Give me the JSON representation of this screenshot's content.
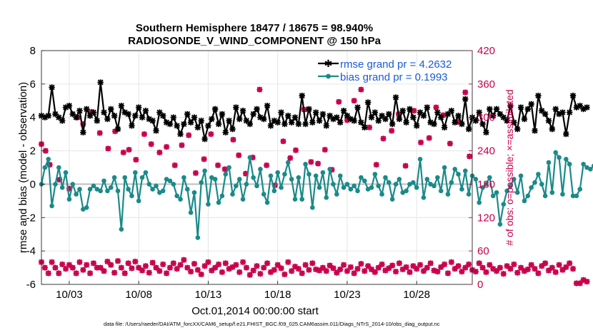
{
  "chart_data": {
    "type": "line",
    "title": "Southern Hemisphere 18477 / 18675 = 98.940%",
    "subtitle": "RADIOSONDE_V_WIND_COMPONENT @ 150 hPa",
    "ylabel": "rmse and bias (model - observation)",
    "y2label": "# of obs: o=possible; ×=assimilated",
    "xlabel": "Oct.01,2014 00:00:00 start",
    "footnote": "data file: /Users/raeder/DAI/ATM_forcXX/CAM6_setup/f.e21.FHIST_BGC.f09_025.CAM6assim.011/Diags_NTrS_2014-10/obs_diag_output.nc",
    "x_range": [
      1.0,
      32.0
    ],
    "ylim": [
      -6,
      8
    ],
    "y_ticks": [
      -6,
      -4,
      -2,
      0,
      2,
      4,
      6,
      8
    ],
    "y2lim": [
      0,
      420
    ],
    "y2_ticks": [
      0,
      60,
      120,
      180,
      240,
      300,
      360,
      420
    ],
    "x_ticks": [
      {
        "pos": 3.0,
        "label": "10/03"
      },
      {
        "pos": 8.0,
        "label": "10/08"
      },
      {
        "pos": 13.0,
        "label": "10/13"
      },
      {
        "pos": 18.0,
        "label": "10/18"
      },
      {
        "pos": 23.0,
        "label": "10/23"
      },
      {
        "pos": 28.0,
        "label": "10/28"
      }
    ],
    "grid": true,
    "zero_line": 0,
    "x_step": 0.25,
    "series": [
      {
        "name": "rmse",
        "legend": "rmse grand pr = 4.2632",
        "color": "#000000",
        "marker": "asterisk",
        "values": [
          4.1,
          4.0,
          4.1,
          5.8,
          4.2,
          4.0,
          3.8,
          4.6,
          4.7,
          4.2,
          4.0,
          4.4,
          3.1,
          4.5,
          4.1,
          4.3,
          3.8,
          6.1,
          4.3,
          3.9,
          4.5,
          4.1,
          3.3,
          4.7,
          4.3,
          4.2,
          3.5,
          4.1,
          4.6,
          4.0,
          4.4,
          3.9,
          3.8,
          3.2,
          4.3,
          4.1,
          3.7,
          3.6,
          4.0,
          3.5,
          3.0,
          3.6,
          4.2,
          3.7,
          4.0,
          3.4,
          3.8,
          2.7,
          3.5,
          3.9,
          4.5,
          3.6,
          4.2,
          3.1,
          3.8,
          3.3,
          4.6,
          3.9,
          4.4,
          3.8,
          3.6,
          4.2,
          4.5,
          4.0,
          3.9,
          4.7,
          3.5,
          3.8,
          3.7,
          4.3,
          3.6,
          4.1,
          3.7,
          4.0,
          3.6,
          5.3,
          3.6,
          4.5,
          3.7,
          4.3,
          3.8,
          4.2,
          3.5,
          4.1,
          3.9,
          4.0,
          3.7,
          4.4,
          4.1,
          3.9,
          3.8,
          4.6,
          3.7,
          3.4,
          4.9,
          4.0,
          4.3,
          3.8,
          4.1,
          3.9,
          4.2,
          3.6,
          5.2,
          3.9,
          4.4,
          3.7,
          4.5,
          4.0,
          3.5,
          4.3,
          4.1,
          4.6,
          3.7,
          3.6,
          4.3,
          4.0,
          3.4,
          4.2,
          4.4,
          3.7,
          4.1,
          3.6,
          5.1,
          3.3,
          4.0,
          3.8,
          4.3,
          3.6,
          3.1,
          4.5,
          4.1,
          4.5,
          4.2,
          4.0,
          3.8,
          4.7,
          3.7,
          3.3,
          4.6,
          3.9,
          4.5,
          4.8,
          3.2,
          5.3,
          4.4,
          4.2,
          3.8,
          3.3,
          4.5,
          4.2,
          4.3,
          3.0,
          4.3,
          5.3,
          4.6,
          4.7,
          4.5,
          4.6
        ]
      },
      {
        "name": "bias",
        "legend": "bias grand pr = 0.1993",
        "color": "#1a8a8a",
        "marker": "dot",
        "values": [
          0.0,
          1.0,
          1.5,
          -1.3,
          0.0,
          1.0,
          -0.2,
          0.7,
          -0.9,
          0.0,
          -0.6,
          -0.3,
          -1.5,
          -1.4,
          -0.3,
          -0.1,
          -0.3,
          -0.4,
          0.2,
          -0.4,
          -0.2,
          0.4,
          -0.4,
          -2.7,
          0.4,
          -0.3,
          -0.7,
          0.7,
          -1.0,
          0.4,
          0.7,
          0.0,
          -0.3,
          -0.1,
          -0.5,
          -0.4,
          0.3,
          0.2,
          0.0,
          -0.7,
          -0.9,
          0.4,
          -0.3,
          -1.7,
          -0.5,
          -3.2,
          0.1,
          0.8,
          -1.2,
          0.4,
          0.3,
          -1.1,
          -0.7,
          0.6,
          1.0,
          -0.6,
          -0.1,
          0.3,
          -0.9,
          0.0,
          1.6,
          0.4,
          -0.1,
          0.9,
          -0.6,
          -1.1,
          0.5,
          -0.4,
          0.7,
          -0.2,
          0.6,
          1.3,
          0.3,
          -0.9,
          0.4,
          -0.9,
          1.2,
          0.6,
          -1.4,
          0.5,
          -0.2,
          0.7,
          -0.8,
          0.9,
          0.0,
          -0.6,
          0.5,
          -0.2,
          0.0,
          -0.3,
          -0.1,
          -0.4,
          0.4,
          0.2,
          -0.3,
          -0.2,
          0.6,
          -0.1,
          -0.6,
          0.4,
          0.1,
          -0.9,
          0.0,
          0.3,
          -0.5,
          -0.4,
          0.0,
          0.1,
          -0.2,
          1.5,
          -0.8,
          0.3,
          0.0,
          -0.1,
          0.4,
          -0.4,
          1.0,
          -0.6,
          0.1,
          0.9,
          0.6,
          -0.3,
          0.8,
          -0.6,
          0.5,
          0.3,
          -1.1,
          -0.2,
          0.0,
          0.4,
          -0.7,
          -0.5,
          -2.4,
          -1.2,
          -0.4,
          -0.1,
          0.3,
          -0.5,
          0.5,
          -1.0,
          -0.7,
          -0.2,
          0.1,
          0.6,
          0.0,
          -0.7,
          1.3,
          -0.5,
          1.9,
          1.6,
          -0.6,
          1.5,
          1.2,
          -0.7,
          -0.7,
          -0.3,
          1.2,
          1.0,
          0.9,
          1.1
        ]
      }
    ],
    "obs_count": {
      "axis": "right",
      "color": "#c8004b",
      "possible_and_assimilated": [
        40,
        30,
        20,
        40,
        30,
        20,
        36,
        28,
        35,
        30,
        20,
        40,
        26,
        35,
        20,
        38,
        30,
        30,
        24,
        41,
        35,
        21,
        42,
        30,
        20,
        38,
        29,
        41,
        30,
        25,
        33,
        21,
        39,
        30,
        24,
        36,
        20,
        30,
        38,
        28,
        35,
        44,
        30,
        23,
        37,
        26,
        18,
        33,
        40,
        25,
        30,
        36,
        22,
        38,
        28,
        31,
        35,
        22,
        40,
        30,
        17,
        25,
        33,
        19,
        30,
        38,
        22,
        26,
        35,
        29,
        18,
        40,
        24,
        32,
        28,
        20,
        35,
        26,
        38,
        27,
        25,
        30,
        24,
        34,
        29,
        21,
        27,
        35,
        24,
        31,
        20,
        28,
        37,
        24,
        33,
        27,
        22,
        30,
        36,
        25,
        29,
        34,
        23,
        38,
        27,
        31,
        22,
        33,
        28,
        35,
        24,
        30,
        38,
        25,
        23,
        31,
        36,
        20,
        40,
        28,
        33,
        23,
        30,
        36,
        26,
        23,
        38,
        30,
        22,
        35,
        28,
        24,
        30,
        19,
        33,
        28,
        36,
        21,
        30,
        24,
        27,
        35,
        28,
        20,
        33,
        38,
        25,
        30,
        22,
        35,
        26,
        31,
        38,
        28,
        2,
        2,
        8,
        5
      ]
    },
    "obs_upper": [
      {
        "x": 1.0,
        "y": 252
      },
      {
        "x": 1.3,
        "y": 240
      },
      {
        "x": 1.6,
        "y": 215
      },
      {
        "x": 2.3,
        "y": 188
      },
      {
        "x": 3.0,
        "y": 172
      },
      {
        "x": 3.6,
        "y": 300
      },
      {
        "x": 4.0,
        "y": 288
      },
      {
        "x": 4.6,
        "y": 310
      },
      {
        "x": 5.2,
        "y": 272
      },
      {
        "x": 5.8,
        "y": 244
      },
      {
        "x": 6.3,
        "y": 275
      },
      {
        "x": 6.9,
        "y": 237
      },
      {
        "x": 7.3,
        "y": 242
      },
      {
        "x": 7.8,
        "y": 224
      },
      {
        "x": 8.4,
        "y": 270
      },
      {
        "x": 8.9,
        "y": 252
      },
      {
        "x": 9.5,
        "y": 237
      },
      {
        "x": 10.0,
        "y": 247
      },
      {
        "x": 10.6,
        "y": 214
      },
      {
        "x": 11.1,
        "y": 250
      },
      {
        "x": 11.6,
        "y": 268
      },
      {
        "x": 12.1,
        "y": 200
      },
      {
        "x": 12.7,
        "y": 225
      },
      {
        "x": 13.2,
        "y": 270
      },
      {
        "x": 13.7,
        "y": 214
      },
      {
        "x": 14.2,
        "y": 207
      },
      {
        "x": 14.8,
        "y": 260
      },
      {
        "x": 15.2,
        "y": 232
      },
      {
        "x": 15.7,
        "y": 199
      },
      {
        "x": 16.2,
        "y": 228
      },
      {
        "x": 16.7,
        "y": 350
      },
      {
        "x": 17.2,
        "y": 214
      },
      {
        "x": 17.8,
        "y": 178
      },
      {
        "x": 18.4,
        "y": 257
      },
      {
        "x": 18.9,
        "y": 227
      },
      {
        "x": 19.3,
        "y": 241
      },
      {
        "x": 19.9,
        "y": 314
      },
      {
        "x": 20.4,
        "y": 220
      },
      {
        "x": 20.9,
        "y": 217
      },
      {
        "x": 21.4,
        "y": 242
      },
      {
        "x": 21.9,
        "y": 206
      },
      {
        "x": 22.4,
        "y": 328
      },
      {
        "x": 23.0,
        "y": 295
      },
      {
        "x": 23.5,
        "y": 330
      },
      {
        "x": 24.0,
        "y": 350
      },
      {
        "x": 24.6,
        "y": 282
      },
      {
        "x": 25.1,
        "y": 215
      },
      {
        "x": 25.6,
        "y": 262
      },
      {
        "x": 26.2,
        "y": 276
      },
      {
        "x": 26.7,
        "y": 306
      },
      {
        "x": 27.2,
        "y": 213
      },
      {
        "x": 27.8,
        "y": 312
      },
      {
        "x": 28.3,
        "y": 255
      },
      {
        "x": 28.9,
        "y": 263
      },
      {
        "x": 29.4,
        "y": 318
      },
      {
        "x": 29.9,
        "y": 304
      },
      {
        "x": 30.4,
        "y": 253
      },
      {
        "x": 31.0,
        "y": 292
      },
      {
        "x": 31.5,
        "y": 345
      },
      {
        "x": 31.8,
        "y": 230
      }
    ]
  }
}
